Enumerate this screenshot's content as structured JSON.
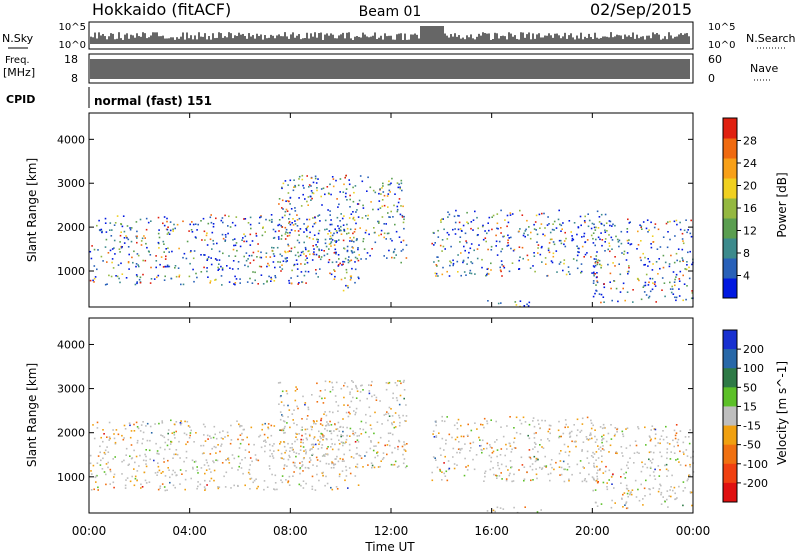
{
  "header": {
    "station": "Hokkaido (fitACF)",
    "beam": "Beam 01",
    "date": "02/Sep/2015"
  },
  "strips": {
    "nsky_label": "N.Sky",
    "nsearch_label": "N.Search",
    "freq_label": "Freq.",
    "freq_unit": "[MHz]",
    "nave_label": "Nave",
    "cpid_label": "CPID",
    "nsky_ticks": [
      "10^5",
      "10^0"
    ],
    "nsearch_ticks": [
      "10^5",
      "10^0"
    ],
    "freq_ticks": [
      "18",
      "8"
    ],
    "nave_ticks": [
      "60",
      "0"
    ],
    "cpid_text": "normal (fast) 151"
  },
  "chart_data": [
    {
      "type": "heatmap",
      "panel": "power",
      "ylabel": "Slant Range [km]",
      "ylim": [
        180,
        4600
      ],
      "y_ticks": [
        1000,
        2000,
        3000,
        4000
      ],
      "colorbar_label": "Power [dB]",
      "colorbar_ticks": [
        "28",
        "24",
        "20",
        "16",
        "12",
        "8",
        "4"
      ],
      "colors": [
        "#0018e0",
        "#2860b8",
        "#3c8a8c",
        "#5a9e50",
        "#94b840",
        "#f0d020",
        "#f8a018",
        "#f06a10",
        "#e02010"
      ],
      "echo_regions_hours_km": [
        [
          0.0,
          10.8,
          700,
          2300
        ],
        [
          7.5,
          12.6,
          1200,
          3200
        ],
        [
          13.6,
          20.5,
          900,
          2400
        ],
        [
          20.0,
          24.0,
          300,
          2200
        ],
        [
          15.8,
          18.0,
          200,
          350
        ],
        [
          10.0,
          10.8,
          550,
          700
        ]
      ]
    },
    {
      "type": "heatmap",
      "panel": "velocity",
      "ylabel": "Slant Range [km]",
      "xlabel": "Time UT",
      "ylim": [
        180,
        4600
      ],
      "y_ticks": [
        1000,
        2000,
        3000,
        4000
      ],
      "x_ticks": [
        "00:00",
        "04:00",
        "08:00",
        "12:00",
        "16:00",
        "20:00",
        "00:00"
      ],
      "colorbar_label": "Velocity [m s^-1]",
      "colorbar_ticks": [
        "200",
        "100",
        "50",
        "15",
        "-15",
        "-50",
        "-100",
        "-200"
      ],
      "colors": [
        "#1830d0",
        "#2868a8",
        "#2e7a46",
        "#5cc028",
        "#bebebe",
        "#f0a010",
        "#f07010",
        "#f04010",
        "#e01010"
      ],
      "echo_regions_hours_km": [
        [
          0.0,
          10.8,
          700,
          2300
        ],
        [
          7.5,
          12.6,
          1200,
          3200
        ],
        [
          13.6,
          20.5,
          900,
          2400
        ],
        [
          20.0,
          24.0,
          300,
          2200
        ],
        [
          15.8,
          18.0,
          200,
          350
        ]
      ]
    }
  ]
}
